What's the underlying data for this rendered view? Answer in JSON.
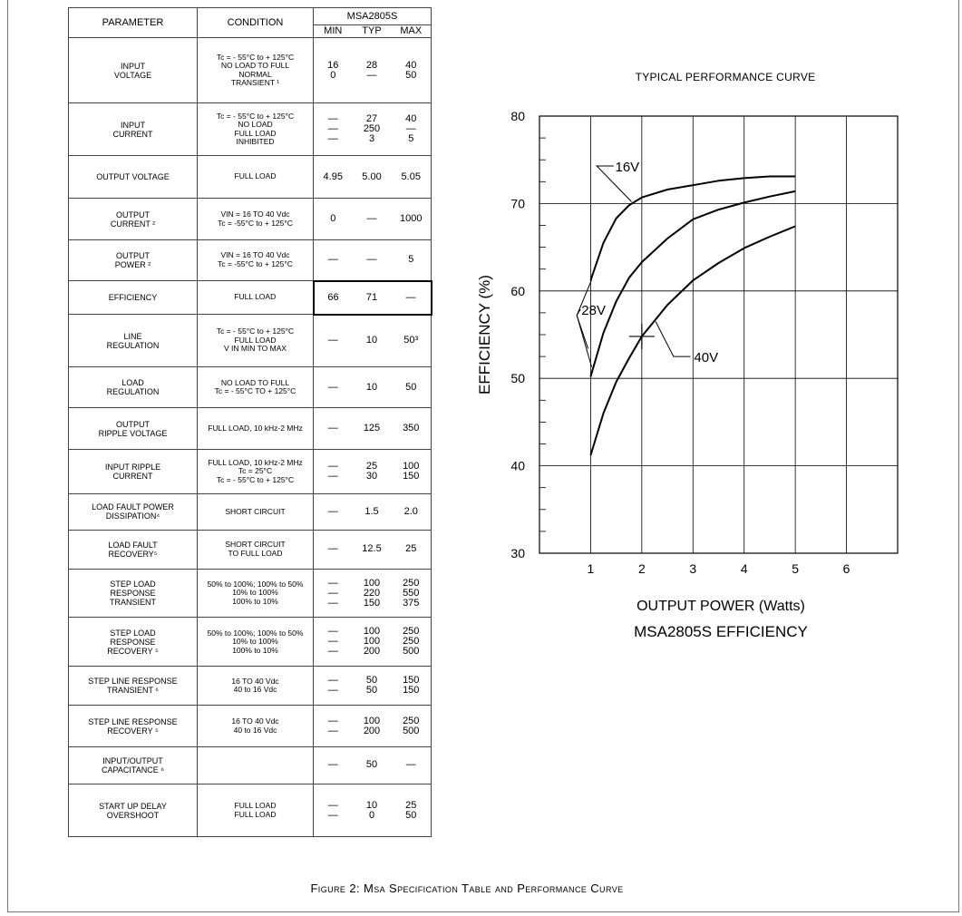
{
  "table": {
    "headers": {
      "parameter": "PARAMETER",
      "condition": "CONDITION",
      "model": "MSA2805S",
      "min": "MIN",
      "typ": "TYP",
      "max": "MAX"
    },
    "rows": [
      {
        "parameter": [
          "INPUT",
          "VOLTAGE"
        ],
        "condition": [
          "Tc = - 55°C to + 125°C",
          "NO LOAD TO FULL",
          "NORMAL",
          "TRANSIENT ¹"
        ],
        "min": [
          "16",
          "0"
        ],
        "typ": [
          "28",
          "—"
        ],
        "max": [
          "40",
          "50"
        ]
      },
      {
        "parameter": [
          "INPUT",
          "CURRENT"
        ],
        "condition": [
          "Tc = - 55°C to + 125°C",
          "NO LOAD",
          "FULL LOAD",
          "INHIBITED"
        ],
        "min": [
          "—",
          "—",
          "—"
        ],
        "typ": [
          "27",
          "250",
          "3"
        ],
        "max": [
          "40",
          "—",
          "5"
        ]
      },
      {
        "parameter": [
          "OUTPUT VOLTAGE"
        ],
        "condition": [
          "FULL LOAD"
        ],
        "min": [
          "4.95"
        ],
        "typ": [
          "5.00"
        ],
        "max": [
          "5.05"
        ]
      },
      {
        "parameter": [
          "OUTPUT",
          "CURRENT ²"
        ],
        "condition": [
          "VIN = 16 TO 40 Vdc",
          "Tc = -55°C to + 125°C"
        ],
        "min": [
          "0"
        ],
        "typ": [
          "—"
        ],
        "max": [
          "1000"
        ]
      },
      {
        "parameter": [
          "OUTPUT",
          "POWER ²"
        ],
        "condition": [
          "VIN = 16 TO 40 Vdc",
          "Tc = -55°C to + 125°C"
        ],
        "min": [
          "—"
        ],
        "typ": [
          "—"
        ],
        "max": [
          "5"
        ]
      },
      {
        "parameter": [
          "EFFICIENCY"
        ],
        "condition": [
          "FULL LOAD"
        ],
        "min": [
          "66"
        ],
        "typ": [
          "71"
        ],
        "max": [
          "—"
        ]
      },
      {
        "parameter": [
          "LINE",
          "REGULATION"
        ],
        "condition": [
          "Tc = - 55°C to + 125°C",
          "FULL LOAD",
          "V IN MIN TO MAX"
        ],
        "min": [
          "—"
        ],
        "typ": [
          "10"
        ],
        "max": [
          "50³"
        ]
      },
      {
        "parameter": [
          "LOAD",
          "REGULATION"
        ],
        "condition": [
          "NO LOAD TO FULL",
          "Tc = - 55°C TO + 125°C"
        ],
        "min": [
          "—"
        ],
        "typ": [
          "10"
        ],
        "max": [
          "50"
        ]
      },
      {
        "parameter": [
          "OUTPUT",
          "RIPPLE VOLTAGE"
        ],
        "condition": [
          "FULL LOAD, 10 kHz-2 MHz"
        ],
        "min": [
          "—"
        ],
        "typ": [
          "125"
        ],
        "max": [
          "350"
        ]
      },
      {
        "parameter": [
          "INPUT RIPPLE",
          "CURRENT"
        ],
        "condition": [
          "FULL LOAD, 10 kHz-2 MHz",
          "Tc = 25°C",
          "Tc = - 55°C to + 125°C"
        ],
        "min": [
          "—",
          "—"
        ],
        "typ": [
          "25",
          "30"
        ],
        "max": [
          "100",
          "150"
        ]
      },
      {
        "parameter": [
          "LOAD FAULT POWER",
          "DISSIPATION⁴"
        ],
        "condition": [
          "SHORT CIRCUIT"
        ],
        "min": [
          "—"
        ],
        "typ": [
          "1.5"
        ],
        "max": [
          "2.0"
        ]
      },
      {
        "parameter": [
          "LOAD FAULT",
          "RECOVERY⁵"
        ],
        "condition": [
          "SHORT CIRCUIT",
          "TO FULL LOAD"
        ],
        "min": [
          "—"
        ],
        "typ": [
          "12.5"
        ],
        "max": [
          "25"
        ]
      },
      {
        "parameter": [
          "STEP LOAD",
          "RESPONSE",
          "TRANSIENT"
        ],
        "condition": [
          "50% to 100%; 100% to 50%",
          "10% to 100%",
          "100% to 10%"
        ],
        "min": [
          "—",
          "—",
          "—"
        ],
        "typ": [
          "100",
          "220",
          "150"
        ],
        "max": [
          "250",
          "550",
          "375"
        ]
      },
      {
        "parameter": [
          "STEP LOAD",
          "RESPONSE",
          "RECOVERY ⁵"
        ],
        "condition": [
          "50% to 100%; 100% to 50%",
          "10% to 100%",
          "100% to 10%"
        ],
        "min": [
          "—",
          "—",
          "—"
        ],
        "typ": [
          "100",
          "100",
          "200"
        ],
        "max": [
          "250",
          "250",
          "500"
        ]
      },
      {
        "parameter": [
          "STEP LINE RESPONSE",
          "TRANSIENT ⁶"
        ],
        "condition": [
          "16 TO 40 Vdc",
          "40 to 16 Vdc"
        ],
        "min": [
          "—",
          "—"
        ],
        "typ": [
          "50",
          "50"
        ],
        "max": [
          "150",
          "150"
        ]
      },
      {
        "parameter": [
          "STEP LINE RESPONSE",
          "RECOVERY ⁵"
        ],
        "condition": [
          "16 TO 40 Vdc",
          "40 to 16 Vdc"
        ],
        "min": [
          "—",
          "—"
        ],
        "typ": [
          "100",
          "200"
        ],
        "max": [
          "250",
          "500"
        ]
      },
      {
        "parameter": [
          "INPUT/OUTPUT",
          "CAPACITANCE ⁶"
        ],
        "condition": [],
        "min": [
          "—"
        ],
        "typ": [
          "50"
        ],
        "max": [
          "—"
        ]
      },
      {
        "parameter": [
          "START UP DELAY",
          "OVERSHOOT"
        ],
        "condition": [
          "FULL LOAD",
          "FULL LOAD"
        ],
        "min": [
          "—",
          "—"
        ],
        "typ": [
          "10",
          "0"
        ],
        "max": [
          "25",
          "50"
        ]
      }
    ]
  },
  "chart_data": {
    "type": "line",
    "title": "TYPICAL PERFORMANCE CURVE",
    "subtitle": "MSA2805S EFFICIENCY",
    "xlabel": "OUTPUT POWER (Watts)",
    "ylabel": "EFFICIENCY (%)",
    "xlim": [
      0,
      7
    ],
    "ylim": [
      30,
      80
    ],
    "xticks": [
      1,
      2,
      3,
      4,
      5,
      6
    ],
    "yticks": [
      30,
      40,
      50,
      60,
      70,
      80
    ],
    "grid": true,
    "series": [
      {
        "name": "16V",
        "x": [
          1,
          1.25,
          1.5,
          1.75,
          2,
          2.5,
          3,
          3.5,
          4,
          4.5,
          5
        ],
        "y": [
          61.2,
          65.5,
          68.3,
          69.8,
          70.7,
          71.6,
          72.1,
          72.6,
          72.9,
          73.1,
          73.1
        ]
      },
      {
        "name": "28V",
        "x": [
          1,
          1.25,
          1.5,
          1.75,
          2,
          2.5,
          3,
          3.5,
          4,
          4.5,
          5
        ],
        "y": [
          50.2,
          55.2,
          58.8,
          61.5,
          63.3,
          66.0,
          68.2,
          69.3,
          70.1,
          70.8,
          71.4
        ]
      },
      {
        "name": "40V",
        "x": [
          1,
          1.25,
          1.5,
          1.75,
          2,
          2.5,
          3,
          3.5,
          4,
          4.5,
          5
        ],
        "y": [
          41.2,
          46.0,
          49.6,
          52.3,
          54.8,
          58.4,
          61.2,
          63.2,
          64.9,
          66.2,
          67.4
        ]
      }
    ],
    "annotations": [
      "16V",
      "28V",
      "40V"
    ]
  },
  "caption": "Figure 2: Msa Specification Table and Performance Curve"
}
